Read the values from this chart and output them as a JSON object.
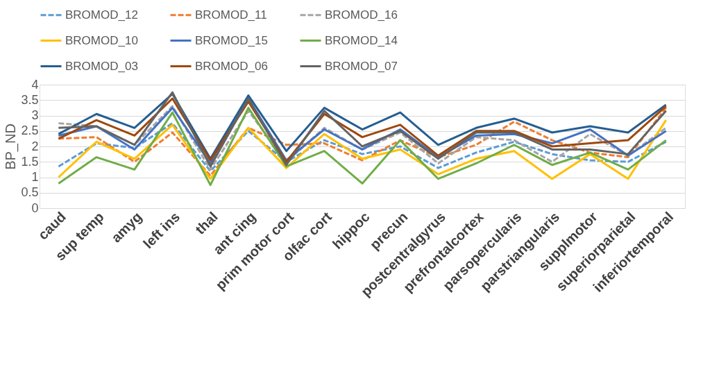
{
  "chart_data": {
    "type": "line",
    "ylabel": "BP_ND",
    "categories": [
      "caud",
      "sup temp",
      "amyg",
      "left ins",
      "thal",
      "ant cing",
      "prim motor cort",
      "olfac cort",
      "hippoc",
      "precun",
      "postcentralgyrus",
      "prefrontalcortex",
      "parsopercularis",
      "parstriangularis",
      "supplmotor",
      "superiorparietal",
      "inferiortemporal"
    ],
    "ylim": [
      0,
      4
    ],
    "yticks": [
      0,
      0.5,
      1,
      1.5,
      2,
      2.5,
      3,
      3.5,
      4
    ],
    "grid": "y",
    "legend": "top",
    "marker": "none",
    "series": [
      {
        "name": "BROMOD_12",
        "color": "#5b9bd5",
        "line_style": "dashed",
        "values": [
          1.35,
          2.1,
          1.95,
          2.75,
          1.2,
          2.5,
          1.5,
          2.2,
          1.75,
          2.0,
          1.3,
          1.8,
          2.15,
          1.75,
          1.55,
          1.5,
          2.15
        ]
      },
      {
        "name": "BROMOD_11",
        "color": "#ed7d31",
        "line_style": "dashed",
        "values": [
          2.25,
          2.3,
          1.5,
          2.45,
          1.05,
          2.6,
          2.05,
          2.1,
          1.55,
          2.2,
          1.65,
          2.05,
          2.8,
          2.2,
          1.8,
          1.65,
          3.25
        ]
      },
      {
        "name": "BROMOD_16",
        "color": "#a5a5a5",
        "line_style": "dashed",
        "values": [
          2.75,
          2.65,
          2.05,
          3.3,
          1.25,
          3.15,
          1.5,
          2.6,
          1.9,
          2.45,
          1.45,
          2.3,
          2.2,
          1.5,
          2.4,
          1.7,
          2.6
        ]
      },
      {
        "name": "BROMOD_10",
        "color": "#ffc000",
        "line_style": "solid",
        "values": [
          1.0,
          2.15,
          1.6,
          2.7,
          0.95,
          2.6,
          1.3,
          2.4,
          1.6,
          1.9,
          1.1,
          1.6,
          1.85,
          0.95,
          1.75,
          0.95,
          2.85
        ]
      },
      {
        "name": "BROMOD_15",
        "color": "#4472c4",
        "line_style": "solid",
        "values": [
          2.35,
          2.65,
          1.9,
          3.25,
          1.45,
          3.55,
          1.55,
          2.55,
          1.9,
          2.55,
          1.65,
          2.35,
          2.4,
          2.1,
          2.55,
          1.7,
          2.5
        ]
      },
      {
        "name": "BROMOD_14",
        "color": "#70ad47",
        "line_style": "solid",
        "values": [
          0.8,
          1.65,
          1.25,
          3.1,
          0.75,
          3.25,
          1.35,
          1.85,
          0.8,
          2.2,
          0.95,
          1.45,
          2.05,
          1.4,
          1.8,
          1.25,
          2.2
        ]
      },
      {
        "name": "BROMOD_03",
        "color": "#255e91",
        "line_style": "solid",
        "values": [
          2.4,
          3.05,
          2.6,
          3.7,
          1.6,
          3.65,
          1.85,
          3.25,
          2.55,
          3.1,
          2.05,
          2.6,
          2.9,
          2.45,
          2.65,
          2.45,
          3.35
        ]
      },
      {
        "name": "BROMOD_06",
        "color": "#9e480e",
        "line_style": "solid",
        "values": [
          2.25,
          2.85,
          2.35,
          3.55,
          1.55,
          3.45,
          1.5,
          3.05,
          2.3,
          2.7,
          1.7,
          2.5,
          2.5,
          2.0,
          2.1,
          2.2,
          3.3
        ]
      },
      {
        "name": "BROMOD_07",
        "color": "#636363",
        "line_style": "solid",
        "values": [
          2.6,
          2.65,
          2.05,
          3.75,
          1.35,
          3.55,
          1.4,
          3.15,
          2.0,
          2.5,
          1.6,
          2.45,
          2.45,
          1.9,
          1.9,
          1.75,
          3.15
        ]
      }
    ]
  }
}
